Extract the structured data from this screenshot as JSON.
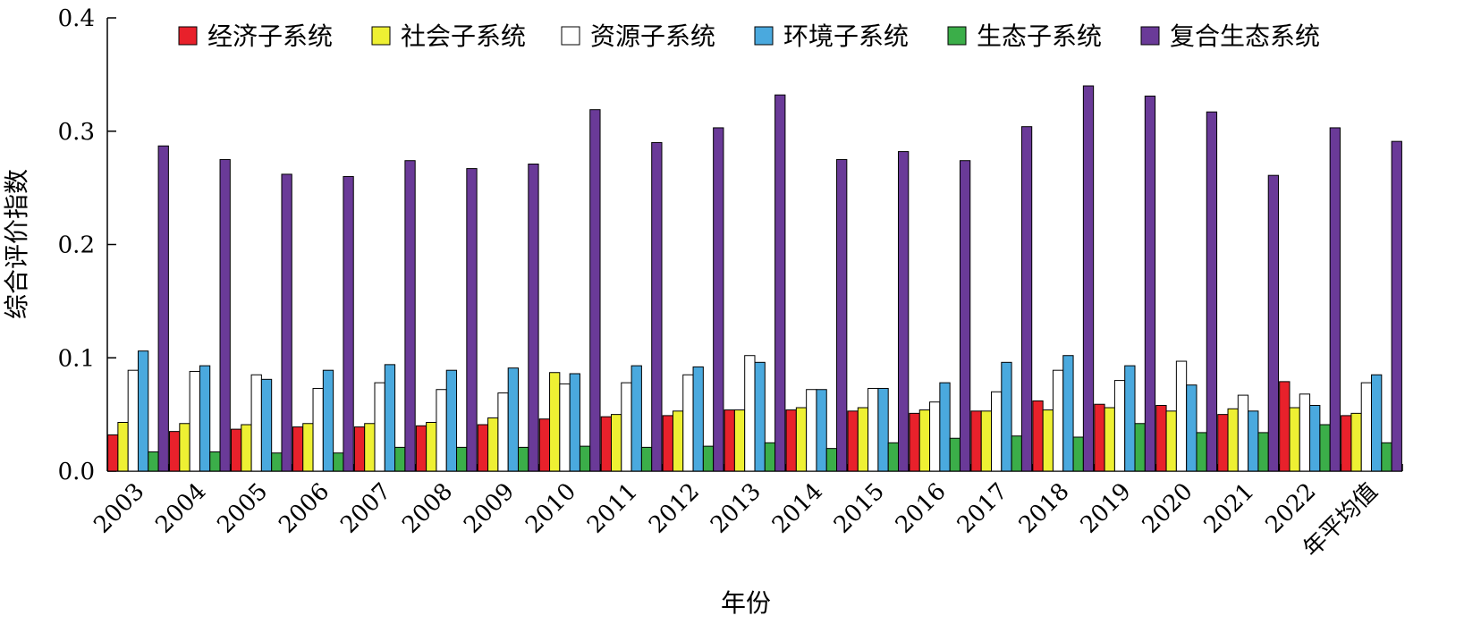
{
  "chart_data": {
    "type": "bar",
    "title": "",
    "xlabel": "年份",
    "ylabel": "综合评价指数",
    "ylim": [
      0,
      0.4
    ],
    "yticks": [
      "0.0",
      "0.1",
      "0.2",
      "0.3",
      "0.4"
    ],
    "ytick_values": [
      0,
      0.1,
      0.2,
      0.3,
      0.4
    ],
    "grid": false,
    "legend_position": "top",
    "categories": [
      "2003",
      "2004",
      "2005",
      "2006",
      "2007",
      "2008",
      "2009",
      "2010",
      "2011",
      "2012",
      "2013",
      "2014",
      "2015",
      "2016",
      "2017",
      "2018",
      "2019",
      "2020",
      "2021",
      "2022",
      "年平均值"
    ],
    "series": [
      {
        "name": "经济子系统",
        "color": "#e8212b",
        "values": [
          0.032,
          0.035,
          0.037,
          0.039,
          0.039,
          0.04,
          0.041,
          0.046,
          0.048,
          0.049,
          0.054,
          0.054,
          0.053,
          0.051,
          0.053,
          0.062,
          0.059,
          0.058,
          0.05,
          0.079,
          0.049
        ]
      },
      {
        "name": "社会子系统",
        "color": "#eef033",
        "values": [
          0.043,
          0.042,
          0.041,
          0.042,
          0.042,
          0.043,
          0.047,
          0.087,
          0.05,
          0.053,
          0.054,
          0.056,
          0.056,
          0.054,
          0.053,
          0.054,
          0.056,
          0.053,
          0.055,
          0.056,
          0.051
        ]
      },
      {
        "name": "资源子系统",
        "color": "#ffffff",
        "values": [
          0.089,
          0.088,
          0.085,
          0.073,
          0.078,
          0.072,
          0.069,
          0.077,
          0.078,
          0.085,
          0.102,
          0.072,
          0.073,
          0.061,
          0.07,
          0.089,
          0.08,
          0.097,
          0.067,
          0.068,
          0.078
        ]
      },
      {
        "name": "环境子系统",
        "color": "#4aa9de",
        "values": [
          0.106,
          0.093,
          0.081,
          0.089,
          0.094,
          0.089,
          0.091,
          0.086,
          0.093,
          0.092,
          0.096,
          0.072,
          0.073,
          0.078,
          0.096,
          0.102,
          0.093,
          0.076,
          0.053,
          0.058,
          0.085
        ]
      },
      {
        "name": "生态子系统",
        "color": "#3bae49",
        "values": [
          0.017,
          0.017,
          0.016,
          0.016,
          0.021,
          0.021,
          0.021,
          0.022,
          0.021,
          0.022,
          0.025,
          0.02,
          0.025,
          0.029,
          0.031,
          0.03,
          0.042,
          0.034,
          0.034,
          0.041,
          0.025
        ]
      },
      {
        "name": "复合生态系统",
        "color": "#6a3a98",
        "values": [
          0.287,
          0.275,
          0.262,
          0.26,
          0.274,
          0.267,
          0.271,
          0.319,
          0.29,
          0.303,
          0.332,
          0.275,
          0.282,
          0.274,
          0.304,
          0.34,
          0.331,
          0.317,
          0.261,
          0.303,
          0.291
        ]
      }
    ]
  }
}
